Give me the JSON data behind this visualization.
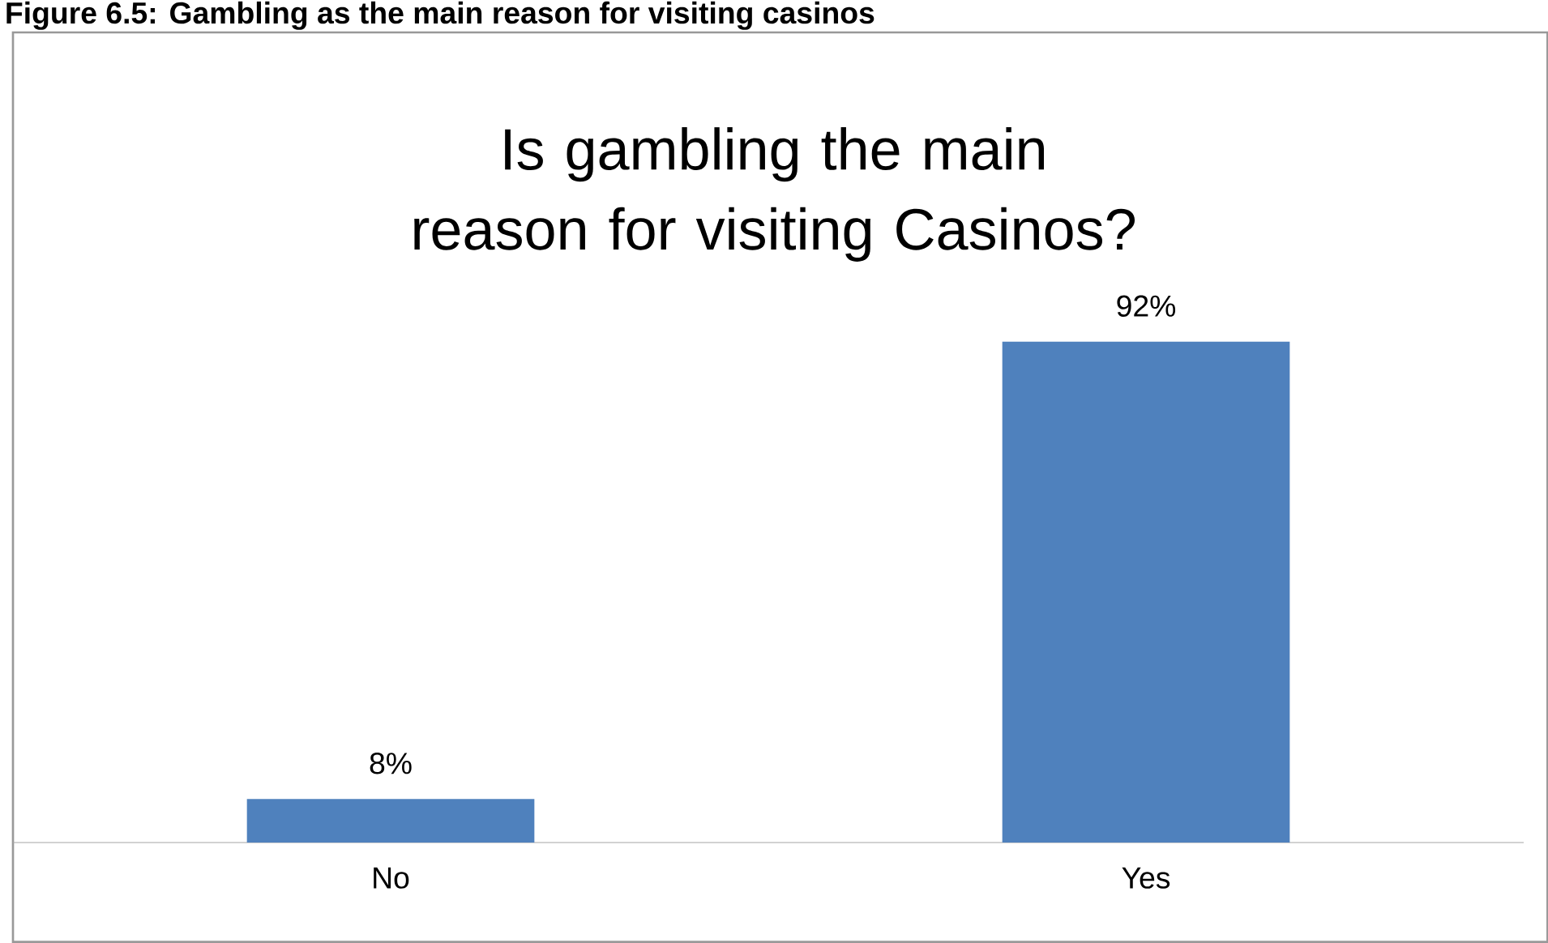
{
  "chart_data": {
    "type": "bar",
    "title": "Is gambling the main reason for visiting Casinos?",
    "annotations": [
      "Figure 6.5: Gambling as the main reason for visiting casinos"
    ],
    "categories": [
      "No",
      "Yes"
    ],
    "values": [
      8,
      92
    ],
    "value_labels": [
      "8%",
      "92%"
    ],
    "color": "#4f81bd"
  }
}
